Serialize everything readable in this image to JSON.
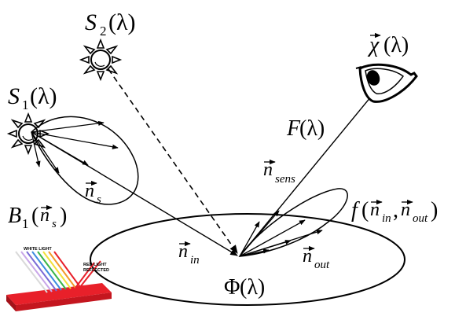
{
  "labels": {
    "s2_main": "S",
    "s2_sub": "2",
    "s2_arg": "(λ)",
    "s1_main": "S",
    "s1_sub": "1",
    "s1_arg": "(λ)",
    "chi_main": "χ",
    "chi_arg": "(λ)",
    "F_main": "F",
    "F_arg": "(λ)",
    "nsens_main": "n",
    "nsens_sub": "sens",
    "ns_main": "n",
    "ns_sub": "s",
    "B1_main": "B",
    "B1_sub": "1",
    "B1_open": "(",
    "B1_n": "n",
    "B1_nsub": "s",
    "B1_close": ")",
    "f_main": "f",
    "f_open": "(",
    "f_n1": "n",
    "f_n1sub": "in",
    "f_comma": ",",
    "f_n2": "n",
    "f_n2sub": "out",
    "f_close": ")",
    "nin_main": "n",
    "nin_sub": "in",
    "nout_main": "n",
    "nout_sub": "out",
    "phi_main": "Φ",
    "phi_arg": "(λ)"
  },
  "inset": {
    "white_light": "WHITE LIGHT",
    "red_line1": "RED LIGHT",
    "red_line2": "REFLECTED"
  },
  "colors": {
    "ink": "#000000",
    "surface_red": "#e8202a",
    "surface_dark": "#a3121a"
  }
}
